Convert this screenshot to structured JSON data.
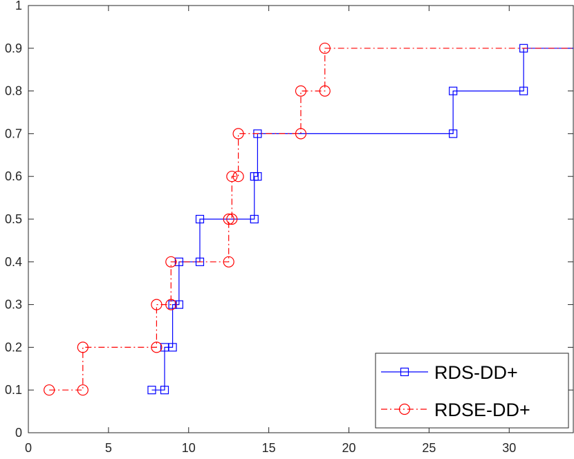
{
  "chart_data": {
    "type": "line",
    "title": "",
    "xlabel": "",
    "ylabel": "",
    "xlim": [
      0,
      34
    ],
    "ylim": [
      0,
      1
    ],
    "xticks": [
      0,
      5,
      10,
      15,
      20,
      25,
      30
    ],
    "yticks": [
      0,
      0.1,
      0.2,
      0.3,
      0.4,
      0.5,
      0.6,
      0.7,
      0.8,
      0.9,
      1
    ],
    "ytick_labels": [
      "0",
      "0.1",
      "0.2",
      "0.3",
      "0.4",
      "0.5",
      "0.6",
      "0.7",
      "0.8",
      "0.9",
      "1"
    ],
    "grid": false,
    "legend_position": "bottom-right",
    "step": true,
    "series": [
      {
        "name": "RDS-DD+",
        "color": "#0000ff",
        "line_style": "solid",
        "marker": "square",
        "points": [
          [
            7.7,
            0.1
          ],
          [
            8.5,
            0.1
          ],
          [
            8.5,
            0.2
          ],
          [
            9.0,
            0.2
          ],
          [
            9.0,
            0.3
          ],
          [
            9.4,
            0.3
          ],
          [
            9.4,
            0.4
          ],
          [
            10.7,
            0.4
          ],
          [
            10.7,
            0.5
          ],
          [
            14.1,
            0.5
          ],
          [
            14.1,
            0.6
          ],
          [
            14.3,
            0.6
          ],
          [
            14.3,
            0.7
          ],
          [
            26.5,
            0.7
          ],
          [
            26.5,
            0.8
          ],
          [
            30.9,
            0.8
          ],
          [
            30.9,
            0.9
          ]
        ],
        "extends_to": 34
      },
      {
        "name": "RDSE-DD+",
        "color": "#ff0000",
        "line_style": "dash-dot",
        "marker": "circle",
        "points": [
          [
            1.3,
            0.1
          ],
          [
            3.4,
            0.1
          ],
          [
            3.4,
            0.2
          ],
          [
            8.0,
            0.2
          ],
          [
            8.0,
            0.3
          ],
          [
            8.9,
            0.3
          ],
          [
            8.9,
            0.4
          ],
          [
            12.5,
            0.4
          ],
          [
            12.5,
            0.5
          ],
          [
            12.7,
            0.5
          ],
          [
            12.7,
            0.6
          ],
          [
            13.1,
            0.6
          ],
          [
            13.1,
            0.7
          ],
          [
            17.0,
            0.7
          ],
          [
            17.0,
            0.8
          ],
          [
            18.5,
            0.8
          ],
          [
            18.5,
            0.9
          ]
        ],
        "extends_to": 34
      }
    ]
  }
}
